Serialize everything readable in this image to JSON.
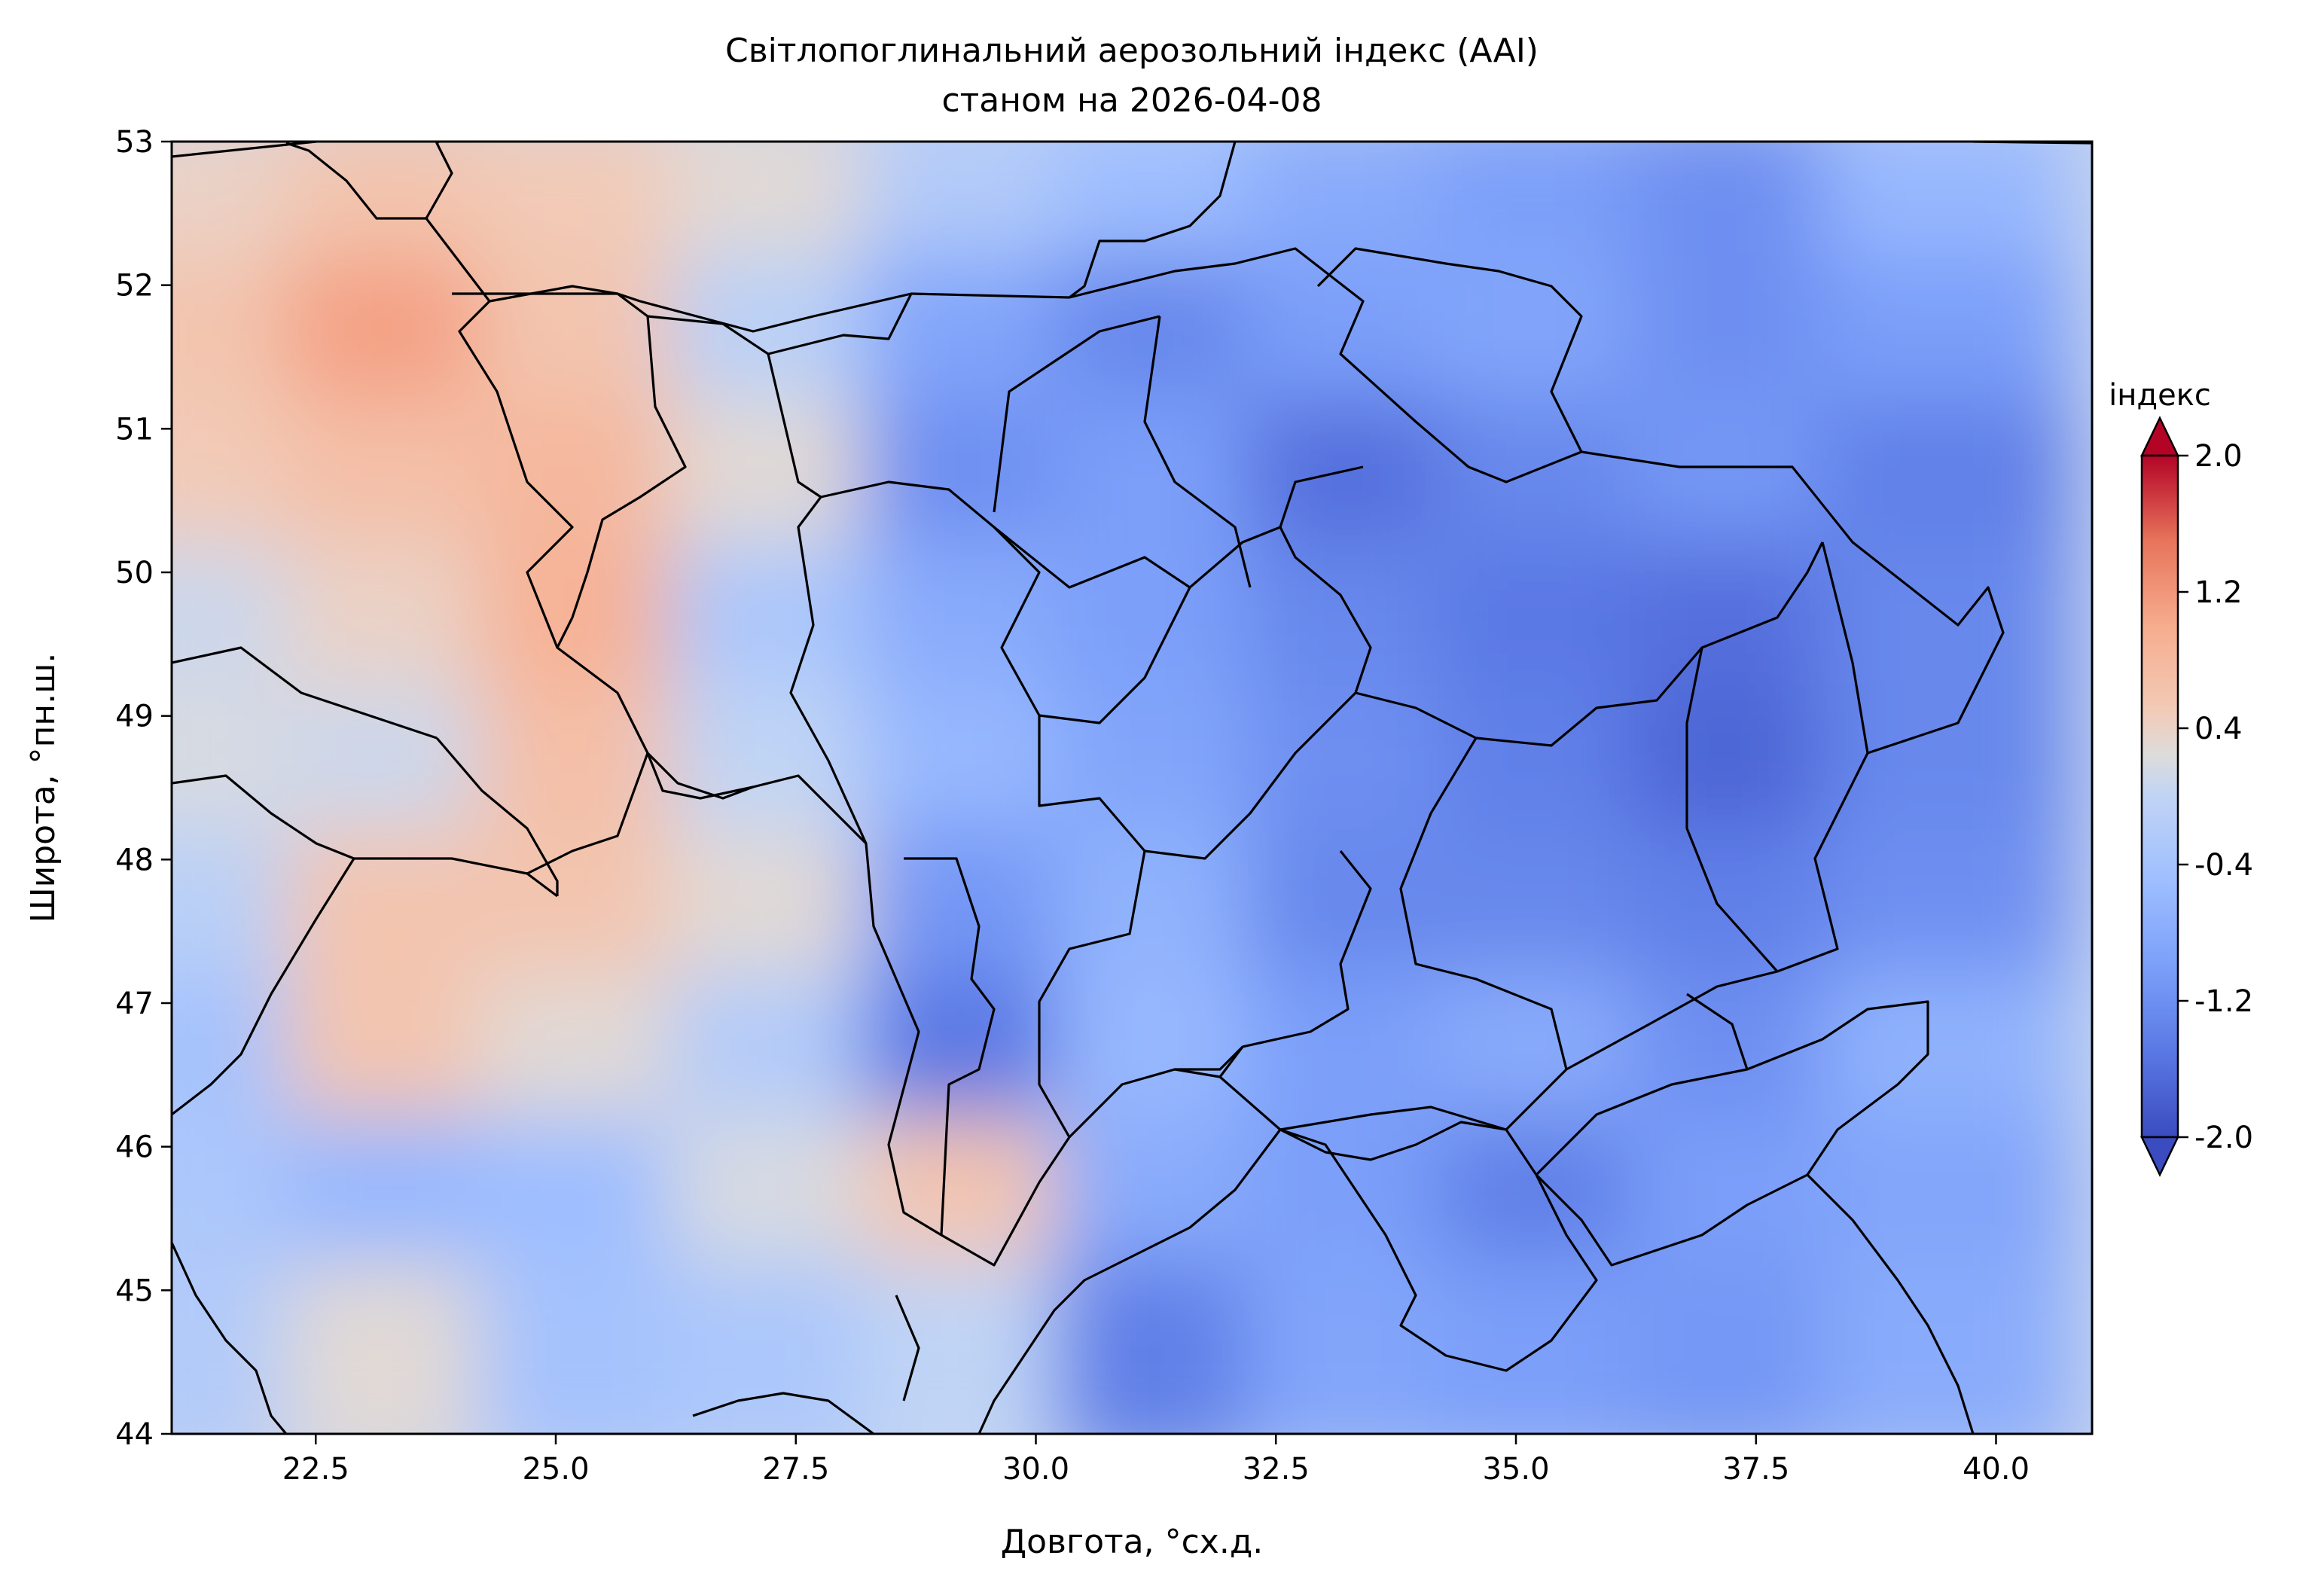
{
  "title": {
    "line1": "Світлопоглинальний аерозольний індекс (AAI)",
    "line2": "станом на 2026-04-08"
  },
  "axes": {
    "xlabel": "Довгота, °сх.д.",
    "ylabel": "Широта, °пн.ш.",
    "xlim": [
      21.0,
      41.0
    ],
    "ylim": [
      44.0,
      53.0
    ],
    "xticks": [
      {
        "value": 22.5,
        "label": "22.5"
      },
      {
        "value": 25.0,
        "label": "25.0"
      },
      {
        "value": 27.5,
        "label": "27.5"
      },
      {
        "value": 30.0,
        "label": "30.0"
      },
      {
        "value": 32.5,
        "label": "32.5"
      },
      {
        "value": 35.0,
        "label": "35.0"
      },
      {
        "value": 37.5,
        "label": "37.5"
      },
      {
        "value": 40.0,
        "label": "40.0"
      }
    ],
    "yticks": [
      {
        "value": 44,
        "label": "44"
      },
      {
        "value": 45,
        "label": "45"
      },
      {
        "value": 46,
        "label": "46"
      },
      {
        "value": 47,
        "label": "47"
      },
      {
        "value": 48,
        "label": "48"
      },
      {
        "value": 49,
        "label": "49"
      },
      {
        "value": 50,
        "label": "50"
      },
      {
        "value": 51,
        "label": "51"
      },
      {
        "value": 52,
        "label": "52"
      },
      {
        "value": 53,
        "label": "53"
      }
    ]
  },
  "colorbar": {
    "label": "індекс",
    "range": [
      -2.0,
      2.0
    ],
    "extend": "both",
    "colormap": "coolwarm",
    "ticks": [
      {
        "value": 2.0,
        "label": "2.0"
      },
      {
        "value": 1.2,
        "label": "1.2"
      },
      {
        "value": 0.4,
        "label": "0.4"
      },
      {
        "value": -0.4,
        "label": "-0.4"
      },
      {
        "value": -1.2,
        "label": "-1.2"
      },
      {
        "value": -2.0,
        "label": "-2.0"
      }
    ]
  },
  "chart_data": {
    "type": "heatmap",
    "variable": "AAI",
    "date": "2026-04-08",
    "lon": [
      21.5,
      23.5,
      25.5,
      27.5,
      29.5,
      31.5,
      33.5,
      35.5,
      37.5,
      39.5
    ],
    "lat": [
      52.5,
      51.5,
      50.5,
      49.5,
      48.5,
      47.5,
      46.5,
      45.5,
      44.5
    ],
    "values": [
      [
        0.4,
        0.6,
        0.5,
        0.3,
        -0.2,
        -0.5,
        -0.8,
        -1.0,
        -1.2,
        -0.6
      ],
      [
        0.6,
        1.1,
        0.6,
        -0.1,
        -0.9,
        -1.3,
        -1.0,
        -0.9,
        -1.2,
        -1.0
      ],
      [
        0.5,
        0.7,
        0.8,
        0.3,
        -1.2,
        -1.0,
        -1.6,
        -1.3,
        -1.1,
        -1.4
      ],
      [
        0.1,
        0.4,
        0.9,
        -0.3,
        -0.8,
        -1.0,
        -1.3,
        -1.5,
        -1.6,
        -1.3
      ],
      [
        0.2,
        0.1,
        0.7,
        0.0,
        -0.6,
        -0.9,
        -1.2,
        -1.4,
        -1.7,
        -1.3
      ],
      [
        -0.1,
        0.6,
        0.6,
        0.3,
        -1.1,
        -0.7,
        -1.3,
        -1.3,
        -1.4,
        -1.2
      ],
      [
        -0.4,
        0.6,
        0.3,
        -0.2,
        -1.5,
        -0.6,
        -1.0,
        -0.8,
        -1.2,
        -0.7
      ],
      [
        -0.3,
        -0.6,
        -0.5,
        0.2,
        0.6,
        -0.8,
        -1.0,
        -1.4,
        -1.0,
        -0.9
      ],
      [
        -0.2,
        0.3,
        -0.4,
        -0.3,
        0.0,
        -1.4,
        -0.9,
        -1.0,
        -1.1,
        -0.8
      ]
    ]
  }
}
